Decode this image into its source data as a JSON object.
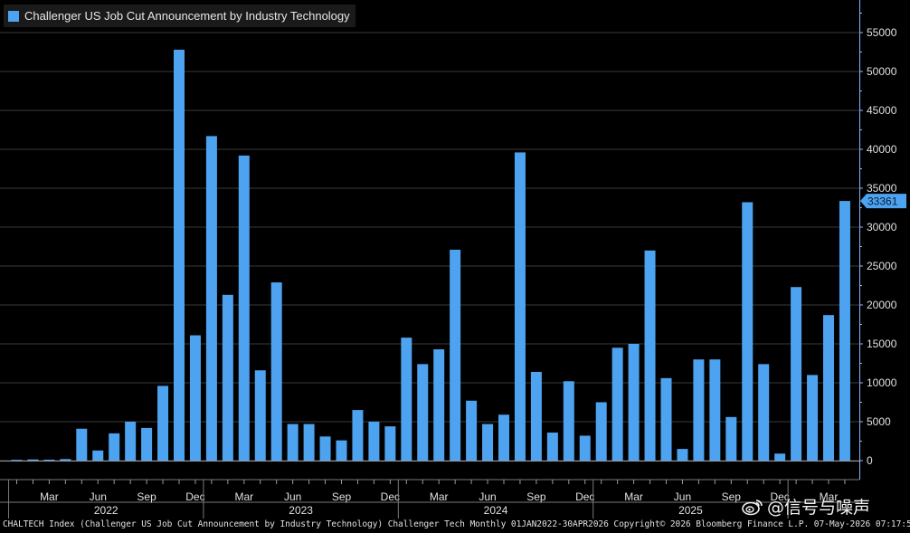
{
  "colors": {
    "background": "#000000",
    "bar": "#4da3f0",
    "grid": "#3a3a3a",
    "axis": "#8cb4ff",
    "last_label_bg": "#4da3f0"
  },
  "chart_data": {
    "type": "bar",
    "title": "Challenger US Job Cut Announcement by Industry Technology",
    "xlabel": "",
    "ylabel": "",
    "ylim": [
      0,
      58000
    ],
    "yticks": [
      0,
      5000,
      10000,
      15000,
      20000,
      25000,
      30000,
      35000,
      40000,
      45000,
      50000,
      55000
    ],
    "grid": true,
    "legend_position": "top-left",
    "last_value_label": "33361",
    "categories": [
      "2022-01",
      "2022-02",
      "2022-03",
      "2022-04",
      "2022-05",
      "2022-06",
      "2022-07",
      "2022-08",
      "2022-09",
      "2022-10",
      "2022-11",
      "2022-12",
      "2023-01",
      "2023-02",
      "2023-03",
      "2023-04",
      "2023-05",
      "2023-06",
      "2023-07",
      "2023-08",
      "2023-09",
      "2023-10",
      "2023-11",
      "2023-12",
      "2024-01",
      "2024-02",
      "2024-03",
      "2024-04",
      "2024-05",
      "2024-06",
      "2024-07",
      "2024-08",
      "2024-09",
      "2024-10",
      "2024-11",
      "2024-12",
      "2025-01",
      "2025-02",
      "2025-03",
      "2025-04",
      "2025-05",
      "2025-06",
      "2025-07",
      "2025-08",
      "2025-09",
      "2025-10",
      "2025-11",
      "2025-12",
      "2026-01",
      "2026-02",
      "2026-03",
      "2026-04"
    ],
    "series": [
      {
        "name": "Challenger US Job Cut Announcement by Industry Technology",
        "values": [
          100,
          150,
          120,
          200,
          4100,
          1300,
          3500,
          5000,
          4200,
          9600,
          52800,
          16100,
          41700,
          21300,
          39200,
          11600,
          22900,
          4700,
          4700,
          3100,
          2600,
          6500,
          5000,
          4400,
          15800,
          12400,
          14300,
          27100,
          7700,
          4700,
          5900,
          39600,
          11400,
          3600,
          10200,
          3200,
          7500,
          14500,
          15000,
          27000,
          10600,
          1500,
          13000,
          13000,
          5600,
          33200,
          12400,
          900,
          22300,
          11000,
          18700,
          33361
        ]
      }
    ],
    "x_month_labels": [
      {
        "label": "Mar",
        "index": 2
      },
      {
        "label": "Jun",
        "index": 5
      },
      {
        "label": "Sep",
        "index": 8
      },
      {
        "label": "Dec",
        "index": 11
      },
      {
        "label": "Mar",
        "index": 14
      },
      {
        "label": "Jun",
        "index": 17
      },
      {
        "label": "Sep",
        "index": 20
      },
      {
        "label": "Dec",
        "index": 23
      },
      {
        "label": "Mar",
        "index": 26
      },
      {
        "label": "Jun",
        "index": 29
      },
      {
        "label": "Sep",
        "index": 32
      },
      {
        "label": "Dec",
        "index": 35
      },
      {
        "label": "Mar",
        "index": 38
      },
      {
        "label": "Jun",
        "index": 41
      },
      {
        "label": "Sep",
        "index": 44
      },
      {
        "label": "Dec",
        "index": 47
      },
      {
        "label": "Mar",
        "index": 50
      }
    ],
    "x_year_labels": [
      {
        "label": "2022",
        "start": 0,
        "end": 11
      },
      {
        "label": "2023",
        "start": 12,
        "end": 23
      },
      {
        "label": "2024",
        "start": 24,
        "end": 35
      },
      {
        "label": "2025",
        "start": 36,
        "end": 47
      }
    ]
  },
  "legend": {
    "label": "Challenger US Job Cut Announcement by Industry Technology"
  },
  "footer": {
    "text": "CHALTECH Index (Challenger US Job Cut Announcement by Industry Technology) Challenger Tech Monthly 01JAN2022-30APR2026  Copyright© 2026 Bloomberg Finance L.P. 07-May-2026 07:17:55"
  },
  "watermark": {
    "text": "@信号与噪声",
    "icon": "weibo-icon"
  }
}
